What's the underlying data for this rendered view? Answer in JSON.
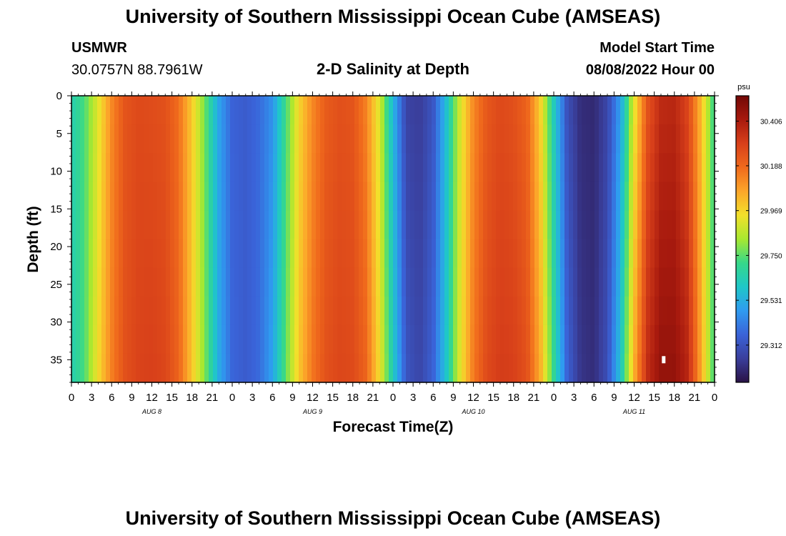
{
  "header": {
    "title": "University of Southern Mississippi Ocean Cube (AMSEAS)",
    "station": "USMWR",
    "coords": "30.0757N  88.7961W",
    "plot_title": "2-D Salinity at Depth",
    "model_start_label": "Model Start Time",
    "model_start_value": "08/08/2022 Hour 00"
  },
  "footer": {
    "title": "University of Southern Mississippi Ocean Cube (AMSEAS)"
  },
  "colors": {
    "background": "#ffffff",
    "frame": "#000000",
    "marker": "#ffffff"
  },
  "chart_data": {
    "type": "heatmap",
    "xlabel": "Forecast Time(Z)",
    "ylabel": "Depth (ft)",
    "x_range_hours": [
      0,
      96
    ],
    "ylim": [
      0,
      38
    ],
    "y_ticks": [
      0,
      5,
      10,
      15,
      20,
      25,
      30,
      35
    ],
    "x_tick_hours": [
      0,
      3,
      6,
      9,
      12,
      15,
      18,
      21,
      24,
      27,
      30,
      33,
      36,
      39,
      42,
      45,
      48,
      51,
      54,
      57,
      60,
      63,
      66,
      69,
      72,
      75,
      78,
      81,
      84,
      87,
      90,
      93,
      96
    ],
    "x_tick_labels": [
      "0",
      "3",
      "6",
      "9",
      "12",
      "15",
      "18",
      "21",
      "0",
      "3",
      "6",
      "9",
      "12",
      "15",
      "18",
      "21",
      "0",
      "3",
      "6",
      "9",
      "12",
      "15",
      "18",
      "21",
      "0",
      "3",
      "6",
      "9",
      "12",
      "15",
      "18",
      "21",
      "0"
    ],
    "day_labels": [
      {
        "label": "AUG 8",
        "hour": 12
      },
      {
        "label": "AUG 9",
        "hour": 36
      },
      {
        "label": "AUG 10",
        "hour": 60
      },
      {
        "label": "AUG 11",
        "hour": 84
      }
    ],
    "colorbar": {
      "unit": "psu",
      "min": 29.13,
      "max": 30.53,
      "tick_values": [
        30.406,
        30.188,
        29.969,
        29.75,
        29.531,
        29.312
      ],
      "tick_labels": [
        "30.406",
        "30.188",
        "29.969",
        "29.750",
        "29.531",
        "29.312"
      ],
      "colormap": [
        "#2a1245",
        "#3a3f9c",
        "#3a63d8",
        "#2f9bf0",
        "#1fc7c8",
        "#36d88a",
        "#a8e830",
        "#f2e02b",
        "#fca62a",
        "#f06a1c",
        "#d8401a",
        "#a81a0e",
        "#720806"
      ]
    },
    "time_series_hours": [
      0,
      2,
      4,
      6,
      8,
      10,
      12,
      14,
      16,
      18,
      20,
      22,
      24,
      26,
      28,
      30,
      32,
      34,
      36,
      38,
      40,
      42,
      44,
      46,
      48,
      50,
      52,
      54,
      56,
      58,
      60,
      62,
      64,
      66,
      68,
      70,
      72,
      74,
      76,
      78,
      80,
      82,
      84,
      86,
      88,
      90,
      92,
      94,
      96
    ],
    "salinity_surface": [
      29.64,
      29.74,
      29.92,
      30.12,
      30.24,
      30.27,
      30.26,
      30.25,
      30.17,
      29.99,
      29.76,
      29.5,
      29.36,
      29.34,
      29.38,
      29.46,
      29.72,
      29.97,
      30.12,
      30.22,
      30.25,
      30.24,
      30.13,
      29.9,
      29.55,
      29.26,
      29.24,
      29.32,
      29.58,
      29.9,
      30.12,
      30.23,
      30.27,
      30.25,
      30.2,
      29.98,
      29.62,
      29.3,
      29.2,
      29.19,
      29.27,
      29.5,
      29.92,
      30.24,
      30.36,
      30.37,
      30.28,
      30.02,
      29.68
    ],
    "salinity_bottom": [
      29.64,
      29.74,
      29.96,
      30.14,
      30.25,
      30.29,
      30.3,
      30.28,
      30.2,
      30.0,
      29.78,
      29.52,
      29.37,
      29.34,
      29.38,
      29.5,
      29.76,
      30.0,
      30.16,
      30.25,
      30.28,
      30.27,
      30.2,
      29.95,
      29.62,
      29.32,
      29.27,
      29.36,
      29.6,
      29.92,
      30.15,
      30.27,
      30.31,
      30.3,
      30.25,
      30.05,
      29.7,
      29.36,
      29.22,
      29.2,
      29.3,
      29.6,
      30.05,
      30.36,
      30.46,
      30.46,
      30.38,
      30.06,
      29.7
    ],
    "annotations": [
      {
        "type": "missing-value-marker",
        "hour": 88.4,
        "depth_ft": 35
      }
    ]
  }
}
